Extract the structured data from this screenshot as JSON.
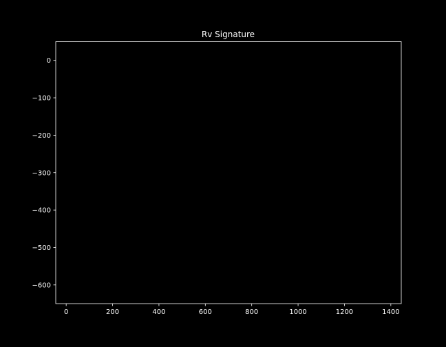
{
  "chart_data": {
    "type": "line",
    "title": "Rv Signature",
    "xlabel": "",
    "ylabel": "",
    "xlim": [
      -45,
      1445
    ],
    "ylim": [
      -650,
      50
    ],
    "x_ticks": [
      0,
      200,
      400,
      600,
      800,
      1000,
      1200,
      1400
    ],
    "x_tick_labels": [
      "0",
      "200",
      "400",
      "600",
      "800",
      "1000",
      "1200",
      "1400"
    ],
    "y_ticks": [
      0,
      -100,
      -200,
      -300,
      -400,
      -500,
      -600
    ],
    "y_tick_labels": [
      "0",
      "−100",
      "−200",
      "−300",
      "−400",
      "−500",
      "−600"
    ],
    "grid": false,
    "series": [],
    "colors": {
      "background": "#000000",
      "axes": "#ffffff",
      "text": "#ffffff"
    }
  }
}
